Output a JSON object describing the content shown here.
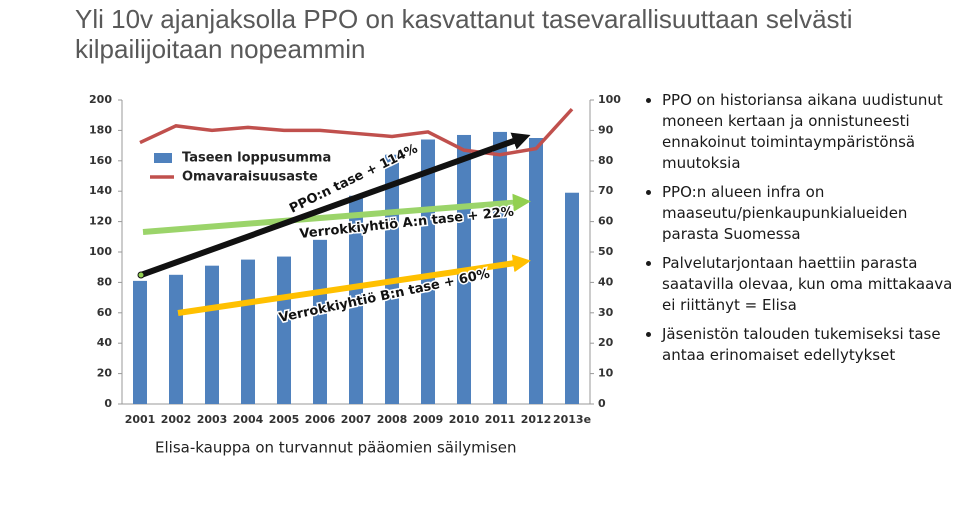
{
  "title": "Yli 10v ajanjaksolla PPO on kasvattanut tasevarallisuuttaan selvästi kilpailijoitaan nopeammin",
  "chart_data": {
    "type": "bar",
    "categories": [
      "2001",
      "2002",
      "2003",
      "2004",
      "2005",
      "2006",
      "2007",
      "2008",
      "2009",
      "2010",
      "2011",
      "2012",
      "2013e"
    ],
    "series": [
      {
        "name": "Taseen loppusumma",
        "color": "#4f81bd",
        "values": [
          81,
          85,
          91,
          95,
          97,
          108,
          137,
          164,
          174,
          177,
          179,
          175,
          139
        ]
      },
      {
        "name": "Omavaraisuusaste",
        "color": "#c0504d",
        "axis": "y2",
        "values": [
          86,
          91.5,
          90,
          91,
          90,
          90,
          89,
          88,
          89.5,
          83.5,
          82,
          84,
          97
        ]
      }
    ],
    "ylim": [
      0,
      200
    ],
    "yticks": [
      0,
      20,
      40,
      60,
      80,
      100,
      120,
      140,
      160,
      180,
      200
    ],
    "y2lim": [
      0,
      100
    ],
    "y2ticks": [
      0,
      10,
      20,
      30,
      40,
      50,
      60,
      70,
      80,
      90,
      100
    ],
    "annotations": [
      "PPO:n tase + 114%",
      "Verrokkiyhtiö A:n tase + 22%",
      "Verrokkiyhtiö B:n tase + 60%"
    ],
    "legend": "upper left"
  },
  "footnote": "Elisa-kauppa on turvannut pääomien säilymisen",
  "bullets": [
    "PPO on historiansa aikana uudistunut moneen kertaan ja onnistuneesti ennakoinut toimintaympäristönsä muutoksia",
    "PPO:n alueen infra on maaseutu/pienkaupunkialueiden parasta Suomessa",
    "Palvelutarjontaan haettiin parasta saatavilla olevaa, kun oma mittakaava ei riittänyt = Elisa",
    "Jäsenistön talouden tukemiseksi tase antaa erinomaiset edellytykset"
  ]
}
